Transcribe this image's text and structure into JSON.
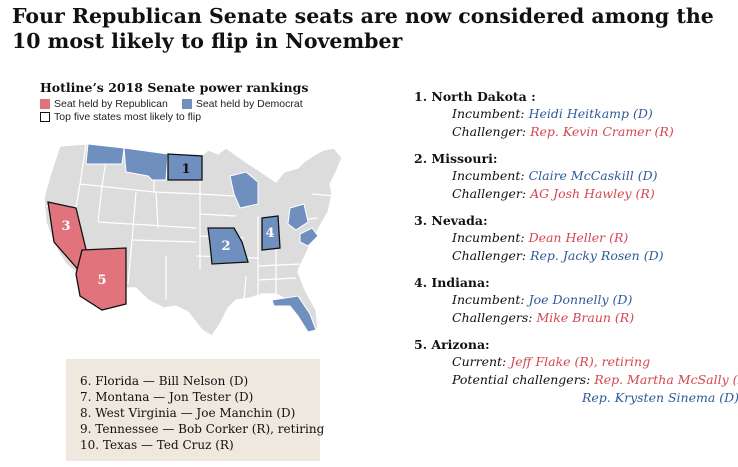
{
  "title": "Four Republican Senate seats are now considered among the 10 most likely to flip in November",
  "map": {
    "subtitle": "Hotline’s 2018 Senate power rankings",
    "legend": {
      "rep": "Seat held by Republican",
      "dem": "Seat held by Democrat",
      "top5": "Top five states most likely to flip"
    },
    "colors": {
      "rep": "#e0737c",
      "dem": "#6f8fbf",
      "neutral": "#dcdcdc"
    },
    "labels": [
      "1",
      "2",
      "3",
      "4",
      "5"
    ]
  },
  "others": [
    "6. Florida — Bill Nelson (D)",
    "7. Montana — Jon Tester (D)",
    "8. West Virginia — Joe Manchin (D)",
    "9. Tennessee — Bob Corker (R), retiring",
    "10. Texas — Ted Cruz (R)"
  ],
  "rankings": [
    {
      "state": "1. North Dakota :",
      "lines": [
        {
          "label": "Incumbent:",
          "value": "Heidi Heitkamp (D)",
          "party": "d"
        },
        {
          "label": "Challenger:",
          "value": "Rep. Kevin Cramer (R)",
          "party": "r"
        }
      ]
    },
    {
      "state": "2. Missouri:",
      "lines": [
        {
          "label": "Incumbent:",
          "value": "Claire McCaskill (D)",
          "party": "d"
        },
        {
          "label": "Challenger:",
          "value": "AG Josh Hawley (R)",
          "party": "r"
        }
      ]
    },
    {
      "state": "3. Nevada:",
      "lines": [
        {
          "label": "Incumbent:",
          "value": "Dean Heller (R)",
          "party": "r"
        },
        {
          "label": "Challenger:",
          "value": "Rep. Jacky Rosen (D)",
          "party": "d"
        }
      ]
    },
    {
      "state": "4. Indiana:",
      "lines": [
        {
          "label": "Incumbent:",
          "value": "Joe Donnelly (D)",
          "party": "d"
        },
        {
          "label": "Challengers:",
          "value": "Mike Braun (R)",
          "party": "r"
        }
      ]
    },
    {
      "state": "5. Arizona:",
      "lines": [
        {
          "label": "Current:",
          "value": "Jeff Flake (R), retiring",
          "party": "r"
        },
        {
          "label": "Potential challengers:",
          "value": "Rep. Martha McSally (R)",
          "party": "r"
        },
        {
          "label": "",
          "value": "Rep. Krysten Sinema (D)",
          "party": "d"
        }
      ]
    }
  ]
}
